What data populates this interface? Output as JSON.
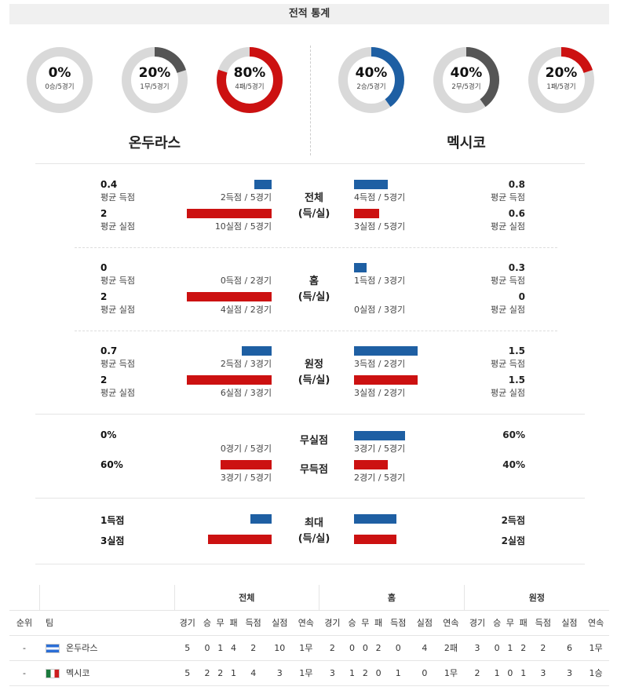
{
  "header": {
    "title": "전적 통계"
  },
  "donuts": [
    {
      "pct": "0%",
      "sub": "0승/5경기",
      "value": 0,
      "color": "#555555"
    },
    {
      "pct": "20%",
      "sub": "1무/5경기",
      "value": 0.2,
      "color": "#555555"
    },
    {
      "pct": "80%",
      "sub": "4패/5경기",
      "value": 0.8,
      "color": "#cc1111"
    },
    {
      "pct": "40%",
      "sub": "2승/5경기",
      "value": 0.4,
      "color": "#1e5fa3"
    },
    {
      "pct": "40%",
      "sub": "2무/5경기",
      "value": 0.4,
      "color": "#555555"
    },
    {
      "pct": "20%",
      "sub": "1패/5경기",
      "value": 0.2,
      "color": "#cc1111"
    }
  ],
  "teams": {
    "left": "온두라스",
    "right": "멕시코"
  },
  "labels": {
    "avg_scored": "평균 득점",
    "avg_conceded": "평균 실점"
  },
  "sections": [
    {
      "center": [
        "전체",
        "(득/실)"
      ],
      "left": {
        "scored": "0.4",
        "conceded": "2",
        "scored_cap": "2득점 / 5경기",
        "conceded_cap": "10실점 / 5경기",
        "scored_frac": 0.2,
        "conceded_frac": 1.0
      },
      "right": {
        "scored": "0.8",
        "conceded": "0.6",
        "scored_cap": "4득점 / 5경기",
        "conceded_cap": "3실점 / 5경기",
        "scored_frac": 0.4,
        "conceded_frac": 0.3
      }
    },
    {
      "center": [
        "홈",
        "(득/실)"
      ],
      "left": {
        "scored": "0",
        "conceded": "2",
        "scored_cap": "0득점 / 2경기",
        "conceded_cap": "4실점 / 2경기",
        "scored_frac": 0,
        "conceded_frac": 1.0
      },
      "right": {
        "scored": "0.3",
        "conceded": "0",
        "scored_cap": "1득점 / 3경기",
        "conceded_cap": "0실점 / 3경기",
        "scored_frac": 0.15,
        "conceded_frac": 0
      }
    },
    {
      "center": [
        "원정",
        "(득/실)"
      ],
      "left": {
        "scored": "0.7",
        "conceded": "2",
        "scored_cap": "2득점 / 3경기",
        "conceded_cap": "6실점 / 3경기",
        "scored_frac": 0.35,
        "conceded_frac": 1.0
      },
      "right": {
        "scored": "1.5",
        "conceded": "1.5",
        "scored_cap": "3득점 / 2경기",
        "conceded_cap": "3실점 / 2경기",
        "scored_frac": 0.75,
        "conceded_frac": 0.75
      }
    }
  ],
  "clean": {
    "center1": "무실점",
    "center2": "무득점",
    "left1": "0%",
    "left2": "60%",
    "left1_cap": "0경기 / 5경기",
    "left2_cap": "3경기 / 5경기",
    "left1_frac": 0,
    "left2_frac": 0.6,
    "right1": "60%",
    "right2": "40%",
    "right1_cap": "3경기 / 5경기",
    "right2_cap": "2경기 / 5경기",
    "right1_frac": 0.6,
    "right2_frac": 0.4
  },
  "max": {
    "center": [
      "최대",
      "(득/실)"
    ],
    "left1": "1득점",
    "left2": "3실점",
    "left1_frac": 0.25,
    "left2_frac": 0.75,
    "right1": "2득점",
    "right2": "2실점",
    "right1_frac": 0.5,
    "right2_frac": 0.5
  },
  "standings": {
    "groups": [
      "전체",
      "홈",
      "원정"
    ],
    "headers": [
      "순위",
      "팀",
      "경기",
      "승",
      "무",
      "패",
      "득점",
      "실점",
      "연속",
      "경기",
      "승",
      "무",
      "패",
      "득점",
      "실점",
      "연속",
      "경기",
      "승",
      "무",
      "패",
      "득점",
      "실점",
      "연속"
    ],
    "rows": [
      {
        "rank": "-",
        "team": "온두라스",
        "flag": "hn",
        "cells": [
          "5",
          "0",
          "1",
          "4",
          "2",
          "10",
          "1무",
          "2",
          "0",
          "0",
          "2",
          "0",
          "4",
          "2패",
          "3",
          "0",
          "1",
          "2",
          "2",
          "6",
          "1무"
        ]
      },
      {
        "rank": "-",
        "team": "멕시코",
        "flag": "mx",
        "cells": [
          "5",
          "2",
          "2",
          "1",
          "4",
          "3",
          "1무",
          "3",
          "1",
          "2",
          "0",
          "1",
          "0",
          "1무",
          "2",
          "1",
          "0",
          "1",
          "3",
          "3",
          "1승"
        ]
      }
    ]
  }
}
